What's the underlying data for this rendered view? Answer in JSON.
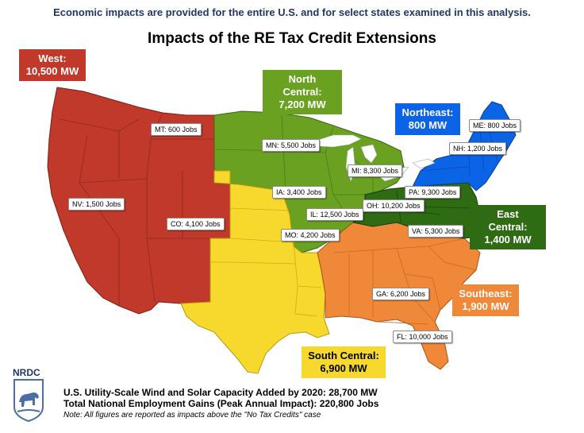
{
  "subtitle": "Economic impacts are provided for the entire U.S. and for select states examined in this analysis.",
  "title": "Impacts of the RE Tax Credit Extensions",
  "regions": {
    "west": {
      "name": "West:",
      "mw": "10,500 MW",
      "color": "#c0392b"
    },
    "north_central": {
      "name": "North Central:",
      "mw": "7,200 MW",
      "color": "#6aa121"
    },
    "northeast": {
      "name": "Northeast:",
      "mw": "800 MW",
      "color": "#0b63e6"
    },
    "east_central": {
      "name": "East Central:",
      "mw": "1,400 MW",
      "color": "#2f6b12"
    },
    "southeast": {
      "name": "Southeast:",
      "mw": "1,900 MW",
      "color": "#f0883a"
    },
    "south_central": {
      "name": "South Central:",
      "mw": "6,900 MW",
      "color": "#f6d92c"
    }
  },
  "states": {
    "mt": "MT: 600 Jobs",
    "nv": "NV: 1,500 Jobs",
    "co": "CO: 4,100 Jobs",
    "mn": "MN: 5,500 Jobs",
    "ia": "IA: 3,400 Jobs",
    "il": "IL: 12,500 Jobs",
    "mo": "MO: 4,200 Jobs",
    "mi": "MI: 8,300 Jobs",
    "oh": "OH: 10,200 Jobs",
    "pa": "PA: 9,300 Jobs",
    "va": "VA: 5,300 Jobs",
    "me": "ME: 800 Jobs",
    "nh": "NH: 1,200 Jobs",
    "ga": "GA: 6,200 Jobs",
    "fl": "FL: 10,000 Jobs"
  },
  "footer": {
    "line1": "U.S. Utility-Scale Wind and Solar Capacity Added by 2020: 28,700 MW",
    "line2": "Total National Employment Gains (Peak Annual Impact): 220,800 Jobs",
    "note": "Note: All figures are reported as impacts above the \"No Tax Credits\" case"
  },
  "logo": {
    "text": "NRDC"
  }
}
